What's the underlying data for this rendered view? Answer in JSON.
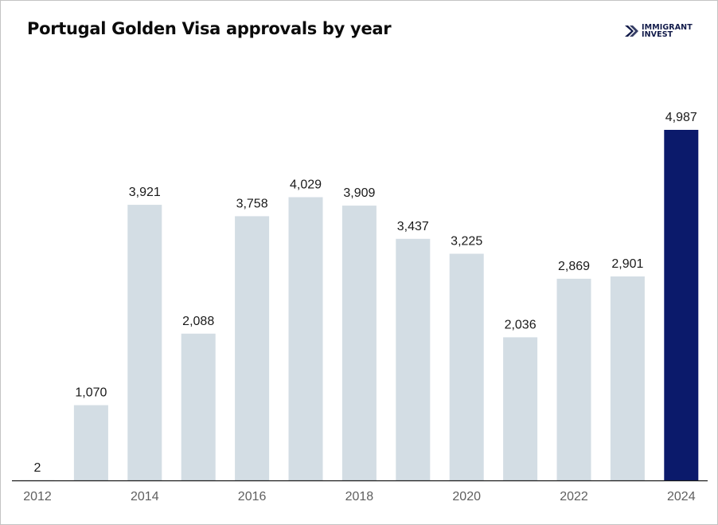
{
  "header": {
    "title": "Portugal Golden Visa approvals by year",
    "logo_line1": "IMMIGRANT",
    "logo_line2": "INVEST",
    "logo_icon": "chevron-logo-icon"
  },
  "colors": {
    "bar_default": "#d3dde4",
    "bar_highlight": "#0b1a6b",
    "axis": "#1a1a1a",
    "logo": "#121b4a"
  },
  "chart_data": {
    "type": "bar",
    "title": "Portugal Golden Visa approvals by year",
    "xlabel": "",
    "ylabel": "",
    "categories": [
      "2012",
      "2013",
      "2014",
      "2015",
      "2016",
      "2017",
      "2018",
      "2019",
      "2020",
      "2021",
      "2022",
      "2023",
      "2024"
    ],
    "values": [
      2,
      1070,
      3921,
      2088,
      3758,
      4029,
      3909,
      3437,
      3225,
      2036,
      2869,
      2901,
      4987
    ],
    "value_labels": [
      "2",
      "1,070",
      "3,921",
      "2,088",
      "3,758",
      "4,029",
      "3,909",
      "3,437",
      "3,225",
      "2,036",
      "2,869",
      "2,901",
      "4,987"
    ],
    "x_tick_labels": [
      "2012",
      "2014",
      "2016",
      "2018",
      "2020",
      "2022",
      "2024"
    ],
    "highlighted_category": "2024",
    "ylim": [
      0,
      5000
    ],
    "grid": false,
    "legend": "none"
  }
}
